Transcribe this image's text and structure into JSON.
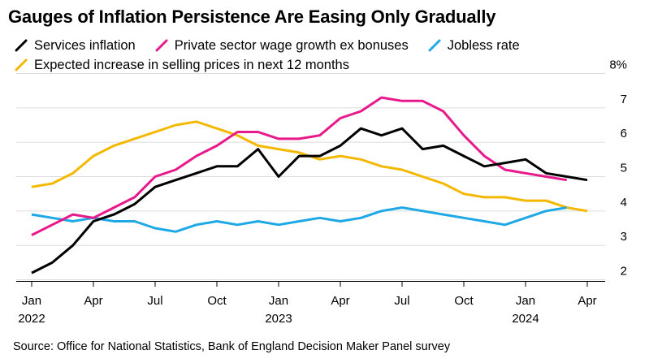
{
  "title": "Gauges of Inflation Persistence Are Easing Only Gradually",
  "source": "Source: Office for National Statistics, Bank of England Decision Maker Panel survey",
  "chart_data": {
    "type": "line",
    "title": "Gauges of Inflation Persistence Are Easing Only Gradually",
    "x_axis": {
      "start": "2022-01",
      "end": "2024-04",
      "ticks": [
        {
          "label": "Jan",
          "year": "2022",
          "month": 0
        },
        {
          "label": "Apr",
          "year": "",
          "month": 3
        },
        {
          "label": "Jul",
          "year": "",
          "month": 6
        },
        {
          "label": "Oct",
          "year": "",
          "month": 9
        },
        {
          "label": "Jan",
          "year": "2023",
          "month": 12
        },
        {
          "label": "Apr",
          "year": "",
          "month": 15
        },
        {
          "label": "Jul",
          "year": "",
          "month": 18
        },
        {
          "label": "Oct",
          "year": "",
          "month": 21
        },
        {
          "label": "Jan",
          "year": "2024",
          "month": 24
        },
        {
          "label": "Apr",
          "year": "",
          "month": 27
        }
      ]
    },
    "y_axis": {
      "position": "right",
      "ylim": [
        1.8,
        8.2
      ],
      "ticks": [
        {
          "value": 2,
          "label": "2"
        },
        {
          "value": 3,
          "label": "3"
        },
        {
          "value": 4,
          "label": "4"
        },
        {
          "value": 5,
          "label": "5"
        },
        {
          "value": 6,
          "label": "6"
        },
        {
          "value": 7,
          "label": "7"
        },
        {
          "value": 8,
          "label": "8%"
        }
      ]
    },
    "grid": true,
    "legend_position": "top-left",
    "series": [
      {
        "name": "Services inflation",
        "color": "#000000",
        "dates": [
          "2022-01",
          "2022-02",
          "2022-03",
          "2022-04",
          "2022-05",
          "2022-06",
          "2022-07",
          "2022-08",
          "2022-09",
          "2022-10",
          "2022-11",
          "2022-12",
          "2023-01",
          "2023-02",
          "2023-03",
          "2023-04",
          "2023-05",
          "2023-06",
          "2023-07",
          "2023-08",
          "2023-09",
          "2023-10",
          "2023-11",
          "2023-12",
          "2024-01",
          "2024-02",
          "2024-03",
          "2024-04"
        ],
        "values": [
          2.2,
          2.5,
          3.0,
          3.7,
          3.9,
          4.2,
          4.7,
          4.9,
          5.1,
          5.3,
          5.3,
          5.8,
          5.0,
          5.6,
          5.6,
          5.9,
          6.4,
          6.2,
          6.4,
          5.8,
          5.9,
          5.6,
          5.3,
          5.4,
          5.5,
          5.1,
          5.0,
          4.9
        ]
      },
      {
        "name": "Private sector wage growth ex bonuses",
        "color": "#e8198b",
        "dates": [
          "2022-01",
          "2022-02",
          "2022-03",
          "2022-04",
          "2022-05",
          "2022-06",
          "2022-07",
          "2022-08",
          "2022-09",
          "2022-10",
          "2022-11",
          "2022-12",
          "2023-01",
          "2023-02",
          "2023-03",
          "2023-04",
          "2023-05",
          "2023-06",
          "2023-07",
          "2023-08",
          "2023-09",
          "2023-10",
          "2023-11",
          "2023-12",
          "2024-01",
          "2024-02",
          "2024-03"
        ],
        "values": [
          3.3,
          3.6,
          3.9,
          3.8,
          4.1,
          4.4,
          5.0,
          5.2,
          5.6,
          5.9,
          6.3,
          6.3,
          6.1,
          6.1,
          6.2,
          6.7,
          6.9,
          7.3,
          7.2,
          7.2,
          6.9,
          6.2,
          5.6,
          5.2,
          5.1,
          5.0,
          4.9
        ]
      },
      {
        "name": "Jobless rate",
        "color": "#1fa8e6",
        "dates": [
          "2022-01",
          "2022-02",
          "2022-03",
          "2022-04",
          "2022-05",
          "2022-06",
          "2022-07",
          "2022-08",
          "2022-09",
          "2022-10",
          "2022-11",
          "2022-12",
          "2023-01",
          "2023-02",
          "2023-03",
          "2023-04",
          "2023-05",
          "2023-06",
          "2023-07",
          "2023-08",
          "2023-09",
          "2023-10",
          "2023-11",
          "2023-12",
          "2024-01",
          "2024-02",
          "2024-03"
        ],
        "values": [
          3.9,
          3.8,
          3.7,
          3.8,
          3.7,
          3.7,
          3.5,
          3.4,
          3.6,
          3.7,
          3.6,
          3.7,
          3.6,
          3.7,
          3.8,
          3.7,
          3.8,
          4.0,
          4.1,
          4.0,
          3.9,
          3.8,
          3.7,
          3.6,
          3.8,
          4.0,
          4.1
        ]
      },
      {
        "name": "Expected increase in selling prices in next 12 months",
        "color": "#f5b800",
        "dates": [
          "2022-01",
          "2022-02",
          "2022-03",
          "2022-04",
          "2022-05",
          "2022-06",
          "2022-07",
          "2022-08",
          "2022-09",
          "2022-10",
          "2022-11",
          "2022-12",
          "2023-01",
          "2023-02",
          "2023-03",
          "2023-04",
          "2023-05",
          "2023-06",
          "2023-07",
          "2023-08",
          "2023-09",
          "2023-10",
          "2023-11",
          "2023-12",
          "2024-01",
          "2024-02",
          "2024-03",
          "2024-04"
        ],
        "values": [
          4.7,
          4.8,
          5.1,
          5.6,
          5.9,
          6.1,
          6.3,
          6.5,
          6.6,
          6.4,
          6.2,
          5.9,
          5.8,
          5.7,
          5.5,
          5.6,
          5.5,
          5.3,
          5.2,
          5.0,
          4.8,
          4.5,
          4.4,
          4.4,
          4.3,
          4.3,
          4.1,
          4.0
        ]
      }
    ]
  }
}
